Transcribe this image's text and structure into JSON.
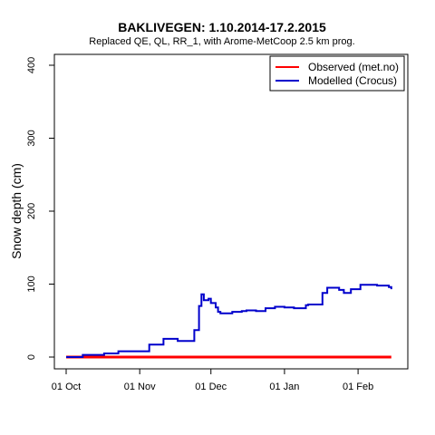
{
  "chart_data": {
    "type": "line",
    "title": "BAKLIVEGEN: 1.10.2014-17.2.2015",
    "subtitle": "Replaced QE, QL, RR_1,  with Arome-MetCoop 2.5 km prog.",
    "xlabel": "",
    "ylabel": "Snow depth (cm)",
    "xlim": [
      "2014-10-01",
      "2015-02-17"
    ],
    "ylim": [
      0,
      400
    ],
    "x_ticks": [
      {
        "date": "2014-10-01",
        "label": "01 Oct"
      },
      {
        "date": "2014-11-01",
        "label": "01 Nov"
      },
      {
        "date": "2014-12-01",
        "label": "01 Dec"
      },
      {
        "date": "2015-01-01",
        "label": "01 Jan"
      },
      {
        "date": "2015-02-01",
        "label": "01 Feb"
      }
    ],
    "y_ticks": [
      0,
      100,
      200,
      300,
      400
    ],
    "legend_position": "top-right",
    "series": [
      {
        "name": "Observed (met.no)",
        "color": "#ff0000",
        "x": [
          "2014-10-01",
          "2015-02-15"
        ],
        "y": [
          0,
          0
        ]
      },
      {
        "name": "Modelled (Crocus)",
        "color": "#0000cc",
        "x": [
          "2014-10-01",
          "2014-10-06",
          "2014-10-08",
          "2014-10-15",
          "2014-10-17",
          "2014-10-22",
          "2014-10-23",
          "2014-11-02",
          "2014-11-05",
          "2014-11-10",
          "2014-11-11",
          "2014-11-15",
          "2014-11-17",
          "2014-11-20",
          "2014-11-24",
          "2014-11-25",
          "2014-11-26",
          "2014-11-27",
          "2014-11-28",
          "2014-11-30",
          "2014-12-01",
          "2014-12-03",
          "2014-12-04",
          "2014-12-05",
          "2014-12-10",
          "2014-12-14",
          "2014-12-16",
          "2014-12-20",
          "2014-12-24",
          "2014-12-28",
          "2015-01-01",
          "2015-01-05",
          "2015-01-08",
          "2015-01-10",
          "2015-01-11",
          "2015-01-14",
          "2015-01-17",
          "2015-01-19",
          "2015-01-24",
          "2015-01-26",
          "2015-01-29",
          "2015-02-02",
          "2015-02-09",
          "2015-02-14",
          "2015-02-15"
        ],
        "y": [
          0,
          0,
          3,
          3,
          5,
          5,
          8,
          8,
          17,
          17,
          25,
          25,
          22,
          22,
          37,
          37,
          70,
          86,
          78,
          80,
          74,
          68,
          62,
          60,
          62,
          63,
          64,
          63,
          67,
          69,
          68,
          67,
          67,
          71,
          72,
          72,
          88,
          95,
          92,
          88,
          93,
          99,
          98,
          96,
          93
        ]
      }
    ]
  }
}
